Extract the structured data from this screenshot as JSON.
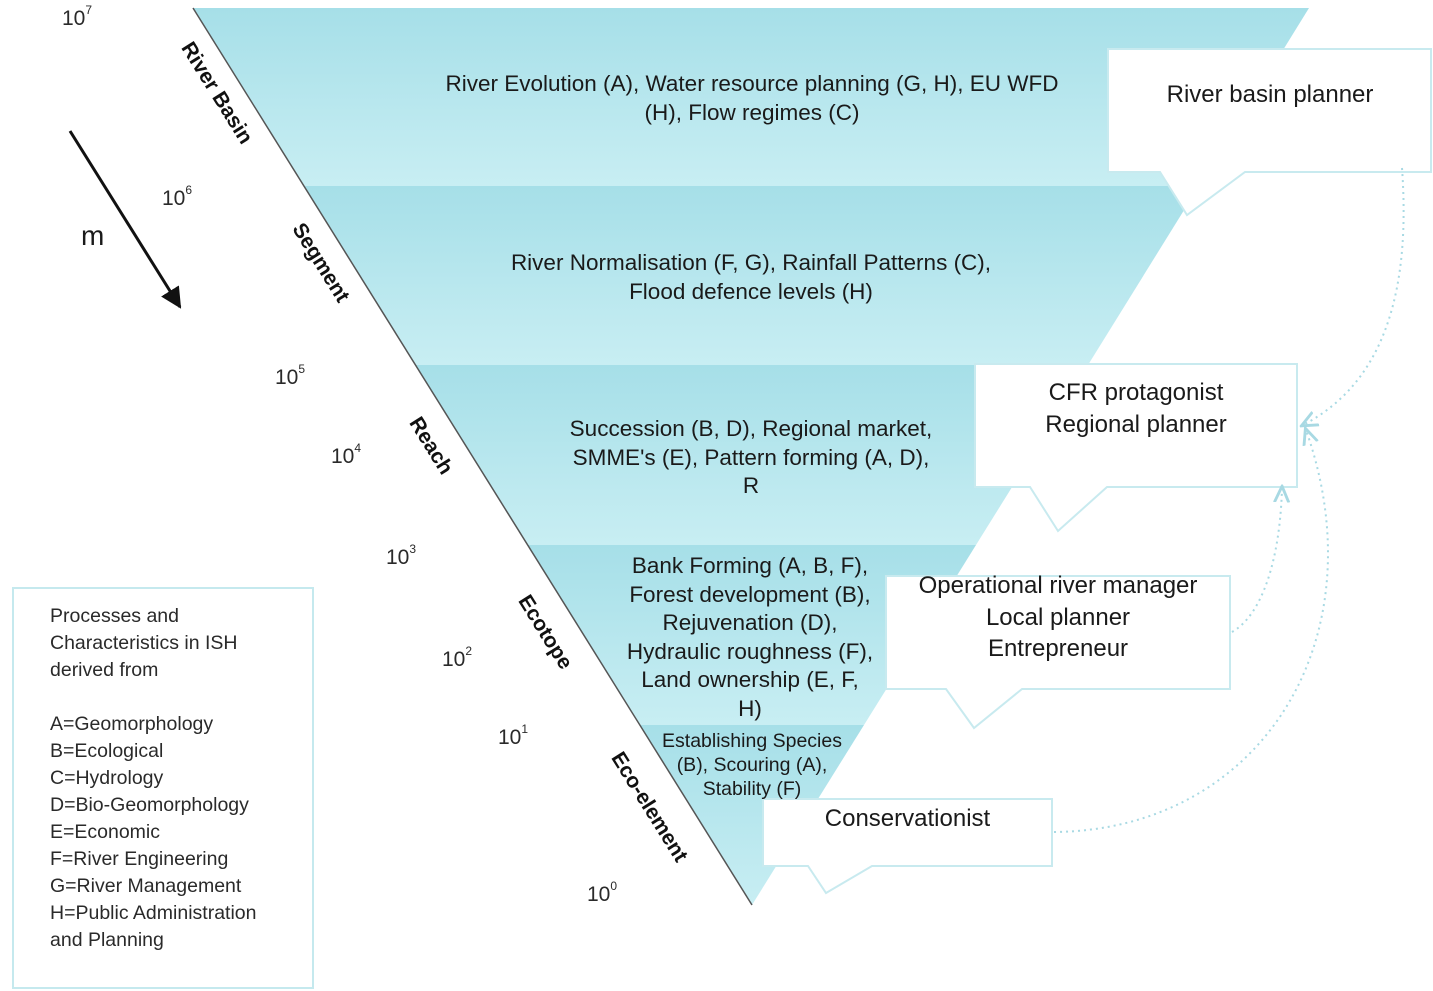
{
  "scale_axis": {
    "unit": "m",
    "ticks": [
      {
        "base": "10",
        "exp": "7"
      },
      {
        "base": "10",
        "exp": "6"
      },
      {
        "base": "10",
        "exp": "5"
      },
      {
        "base": "10",
        "exp": "4"
      },
      {
        "base": "10",
        "exp": "3"
      },
      {
        "base": "10",
        "exp": "2"
      },
      {
        "base": "10",
        "exp": "1"
      },
      {
        "base": "10",
        "exp": "0"
      }
    ]
  },
  "levels": [
    "River Basin",
    "Segment",
    "Reach",
    "Ecotope",
    "Eco-element"
  ],
  "bands": [
    {
      "lines": [
        "River Evolution (A), Water resource planning (G, H), EU WFD",
        "(H), Flow regimes (C)"
      ]
    },
    {
      "lines": [
        "River Normalisation (F, G), Rainfall Patterns (C),",
        "Flood defence levels (H)"
      ]
    },
    {
      "lines": [
        "Succession (B, D), Regional market,",
        "SMME's (E), Pattern forming (A, D),",
        "R"
      ]
    },
    {
      "lines": [
        "Bank Forming (A, B, F),",
        "Forest development (B),",
        "Rejuvenation (D),",
        "Hydraulic roughness (F),",
        "Land ownership (E, F,",
        "H)"
      ]
    },
    {
      "lines": [
        "Establishing Species",
        "(B), Scouring (A),",
        "Stability (F)"
      ]
    }
  ],
  "roles": [
    {
      "lines": [
        "River basin planner"
      ]
    },
    {
      "lines": [
        "CFR protagonist",
        "Regional planner"
      ]
    },
    {
      "lines": [
        "Operational river manager",
        "Local planner",
        "Entrepreneur"
      ]
    },
    {
      "lines": [
        "Conservationist"
      ]
    }
  ],
  "legend": {
    "heading": [
      "Processes and",
      "Characteristics in ISH",
      "derived from"
    ],
    "entries": [
      "A=Geomorphology",
      "B=Ecological",
      "C=Hydrology",
      "D=Bio-Geomorphology",
      "E=Economic",
      "F=River Engineering",
      "G=River Management",
      "H=Public Administration",
      "and Planning"
    ]
  },
  "colors": {
    "band_dark": "#9fdce6",
    "band_light": "#c7edf2",
    "dotted_arrow": "#a8d9e3",
    "legend_border": "#c5e9ee"
  }
}
